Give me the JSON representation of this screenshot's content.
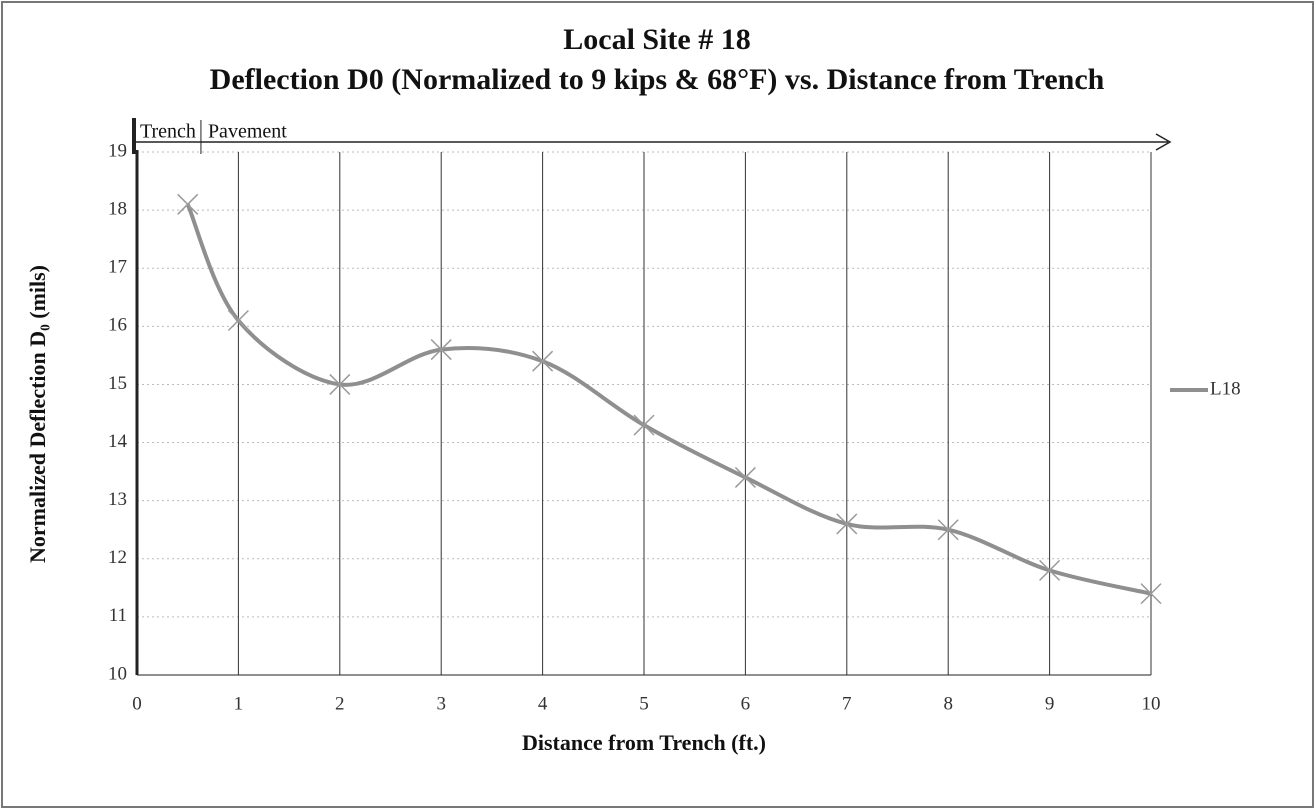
{
  "chart_data": {
    "type": "line",
    "title": "Local Site # 18",
    "subtitle": "Deflection D0 (Normalized to 9 kips & 68°F) vs. Distance from Trench",
    "xlabel": "Distance from Trench (ft.)",
    "ylabel": "Normalized Deflection D₀ (mils)",
    "annotations": [
      "Trench",
      "Pavement"
    ],
    "x": [
      0.5,
      1,
      2,
      3,
      4,
      5,
      6,
      7,
      8,
      9,
      10
    ],
    "series": [
      {
        "name": "L18",
        "color": "#8f8f8f",
        "values": [
          18.1,
          16.1,
          15.0,
          15.6,
          15.4,
          14.3,
          13.4,
          12.6,
          12.5,
          11.8,
          11.4
        ]
      }
    ],
    "xlim": [
      0,
      10
    ],
    "xticks": [
      0,
      1,
      2,
      3,
      4,
      5,
      6,
      7,
      8,
      9,
      10
    ],
    "ylim": [
      10,
      19
    ],
    "yticks": [
      10,
      11,
      12,
      13,
      14,
      15,
      16,
      17,
      18,
      19
    ],
    "grid": true,
    "legend": "right"
  }
}
